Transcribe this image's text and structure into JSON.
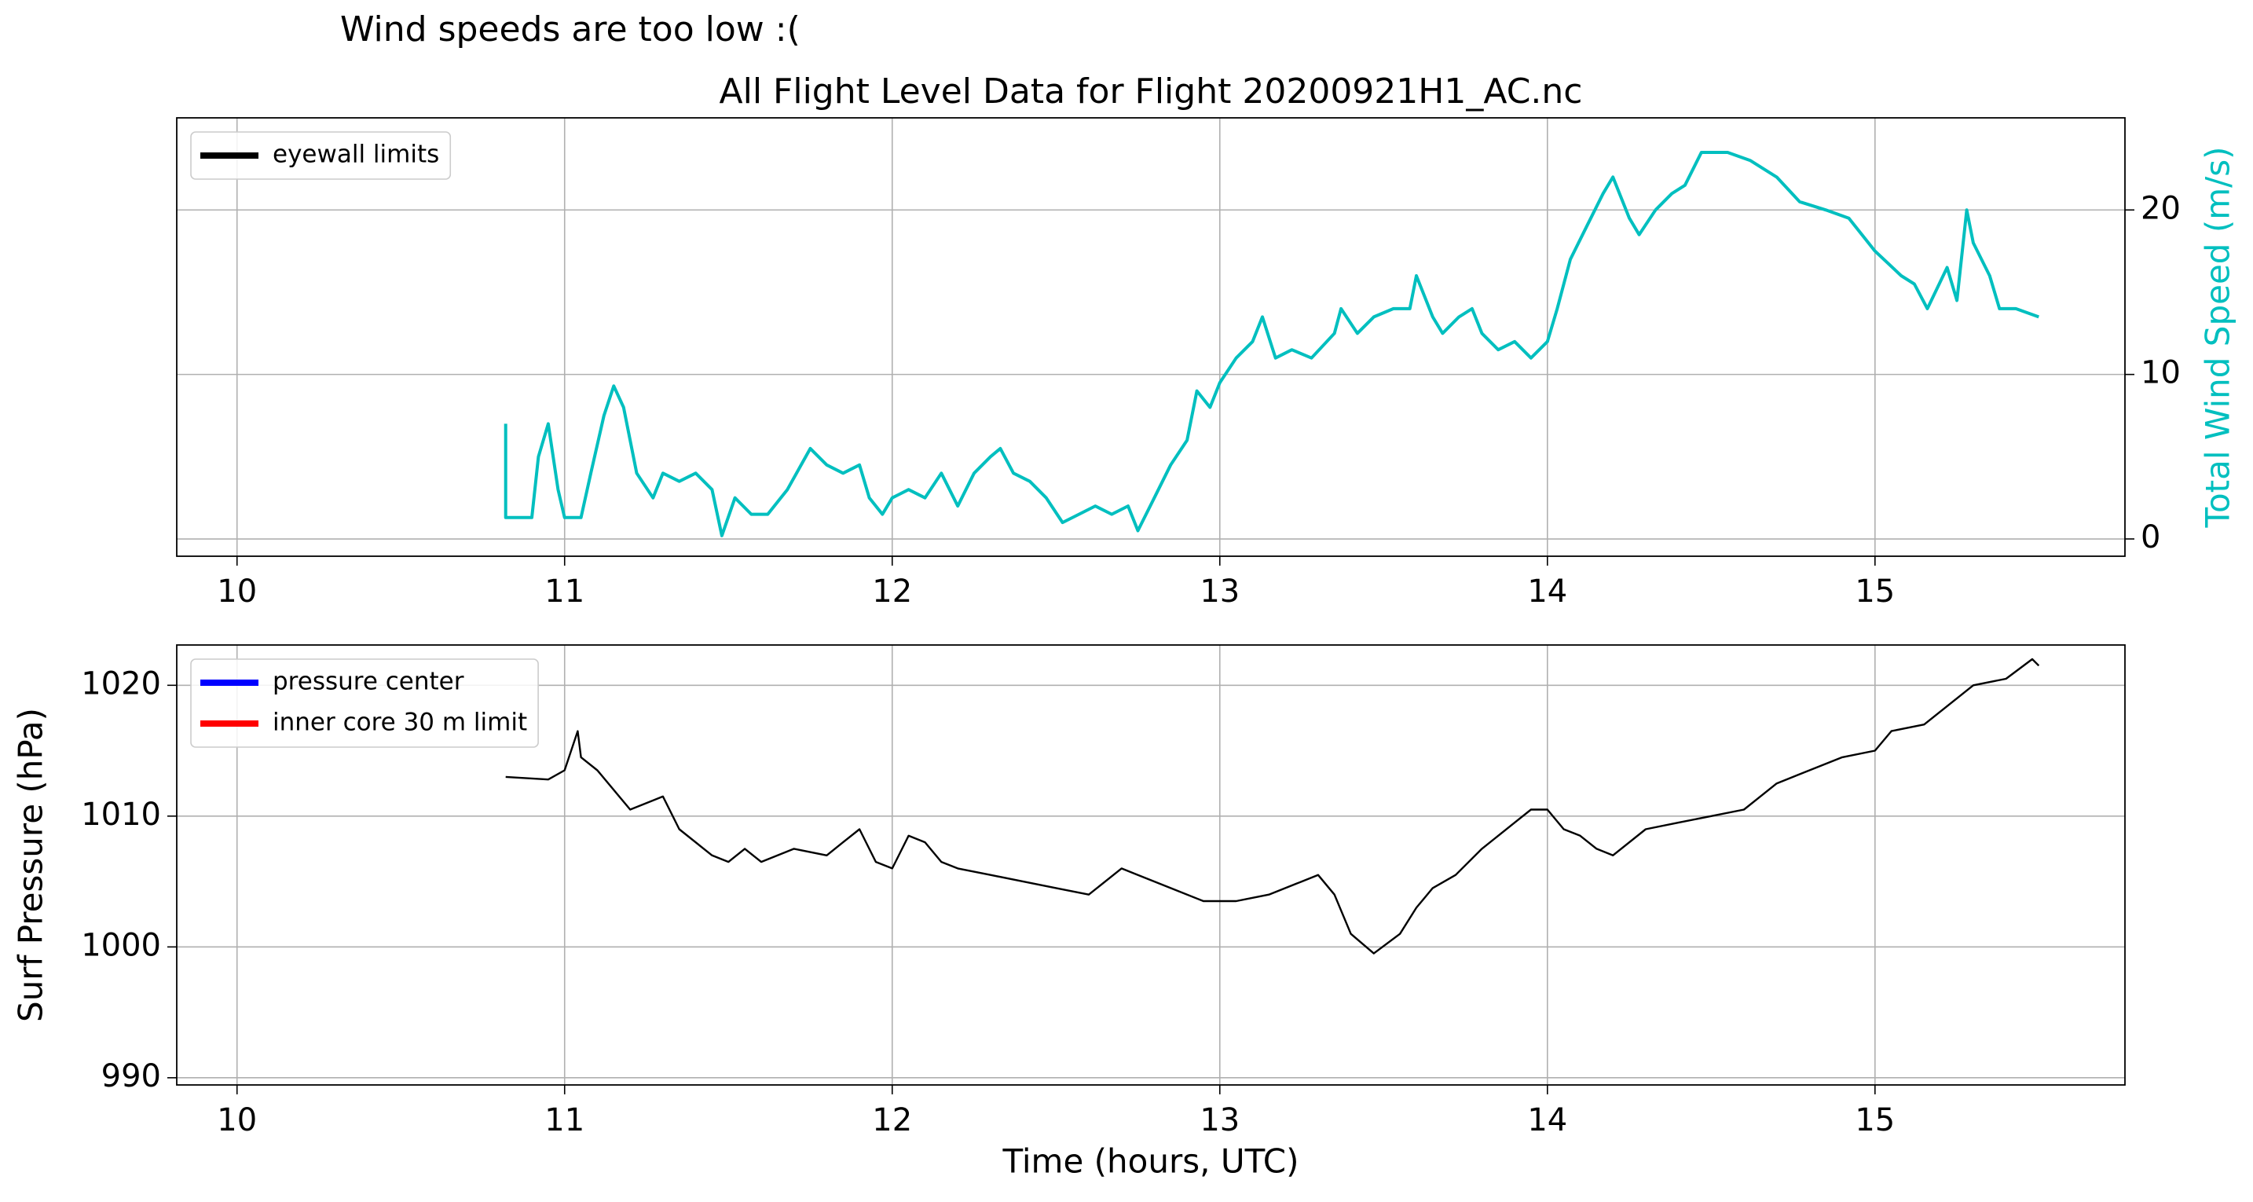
{
  "chart_data": [
    {
      "type": "line",
      "annotation": "Wind speeds are too low :(",
      "title": "All Flight Level Data for Flight 20200921H1_AC.nc",
      "y2label": "Total Wind Speed (m/s)",
      "xlim": [
        9.816,
        15.763
      ],
      "xticks": [
        10,
        11,
        12,
        13,
        14,
        15
      ],
      "y2lim": [
        -1.05,
        25.6
      ],
      "y2ticks": [
        0,
        10,
        20
      ],
      "grid": true,
      "legend_loc": "upper left",
      "legend": [
        {
          "name": "eyewall limits",
          "color": "#000000"
        }
      ],
      "series": [
        {
          "color": "#00bfbf",
          "axis": "y2",
          "x": [
            10.82,
            10.82,
            10.9,
            10.92,
            10.95,
            10.98,
            11.0,
            11.05,
            11.08,
            11.12,
            11.15,
            11.18,
            11.22,
            11.27,
            11.3,
            11.35,
            11.4,
            11.45,
            11.48,
            11.52,
            11.57,
            11.62,
            11.68,
            11.75,
            11.8,
            11.85,
            11.9,
            11.93,
            11.97,
            12.0,
            12.05,
            12.1,
            12.15,
            12.2,
            12.25,
            12.3,
            12.33,
            12.37,
            12.42,
            12.47,
            12.52,
            12.57,
            12.62,
            12.67,
            12.72,
            12.75,
            12.8,
            12.85,
            12.9,
            12.93,
            12.97,
            13.0,
            13.05,
            13.1,
            13.13,
            13.17,
            13.22,
            13.28,
            13.35,
            13.37,
            13.42,
            13.47,
            13.53,
            13.58,
            13.6,
            13.65,
            13.68,
            13.73,
            13.77,
            13.8,
            13.85,
            13.9,
            13.95,
            14.0,
            14.03,
            14.07,
            14.12,
            14.17,
            14.2,
            14.25,
            14.28,
            14.33,
            14.38,
            14.42,
            14.47,
            14.55,
            14.62,
            14.7,
            14.77,
            14.85,
            14.92,
            15.0,
            15.08,
            15.12,
            15.16,
            15.22,
            15.25,
            15.28,
            15.3,
            15.35,
            15.38,
            15.43,
            15.5
          ],
          "values": [
            7.0,
            1.3,
            1.3,
            5.0,
            7.0,
            3.0,
            1.3,
            1.3,
            4.0,
            7.5,
            9.3,
            8.0,
            4.0,
            2.5,
            4.0,
            3.5,
            4.0,
            3.0,
            0.2,
            2.5,
            1.5,
            1.5,
            3.0,
            5.5,
            4.5,
            4.0,
            4.5,
            2.5,
            1.5,
            2.5,
            3.0,
            2.5,
            4.0,
            2.0,
            4.0,
            5.0,
            5.5,
            4.0,
            3.5,
            2.5,
            1.0,
            1.5,
            2.0,
            1.5,
            2.0,
            0.5,
            2.5,
            4.5,
            6.0,
            9.0,
            8.0,
            9.5,
            11.0,
            12.0,
            13.5,
            11.0,
            11.5,
            11.0,
            12.5,
            14.0,
            12.5,
            13.5,
            14.0,
            14.0,
            16.0,
            13.5,
            12.5,
            13.5,
            14.0,
            12.5,
            11.5,
            12.0,
            11.0,
            12.0,
            14.0,
            17.0,
            19.0,
            21.0,
            22.0,
            19.5,
            18.5,
            20.0,
            21.0,
            21.5,
            23.5,
            23.5,
            23.0,
            22.0,
            20.5,
            20.0,
            19.5,
            17.5,
            16.0,
            15.5,
            14.0,
            16.5,
            14.5,
            20.0,
            18.0,
            16.0,
            14.0,
            14.0,
            13.5
          ]
        }
      ]
    },
    {
      "type": "line",
      "ylabel": "Surf Pressure (hPa)",
      "xlabel": "Time (hours, UTC)",
      "xlim": [
        9.816,
        15.763
      ],
      "xticks": [
        10,
        11,
        12,
        13,
        14,
        15
      ],
      "ylim": [
        989.45,
        1023.08
      ],
      "yticks": [
        990,
        1000,
        1010,
        1020
      ],
      "grid": true,
      "legend_loc": "upper left",
      "legend": [
        {
          "name": "pressure center",
          "color": "#0000ff"
        },
        {
          "name": "inner core 30 m limit",
          "color": "#ff0000"
        }
      ],
      "series": [
        {
          "color": "#000000",
          "x": [
            10.82,
            10.95,
            11.0,
            11.04,
            11.05,
            11.1,
            11.2,
            11.3,
            11.35,
            11.45,
            11.5,
            11.55,
            11.6,
            11.7,
            11.8,
            11.85,
            11.9,
            11.95,
            12.0,
            12.05,
            12.1,
            12.15,
            12.2,
            12.3,
            12.4,
            12.5,
            12.6,
            12.7,
            12.75,
            12.85,
            12.95,
            13.05,
            13.15,
            13.25,
            13.3,
            13.35,
            13.4,
            13.47,
            13.55,
            13.6,
            13.65,
            13.72,
            13.8,
            13.9,
            13.95,
            14.0,
            14.05,
            14.1,
            14.15,
            14.2,
            14.3,
            14.4,
            14.5,
            14.6,
            14.7,
            14.8,
            14.9,
            15.0,
            15.05,
            15.15,
            15.25,
            15.3,
            15.4,
            15.48,
            15.5
          ],
          "values": [
            1013,
            1012.8,
            1013.5,
            1016.5,
            1014.5,
            1013.5,
            1010.5,
            1011.5,
            1009,
            1007,
            1006.5,
            1007.5,
            1006.5,
            1007.5,
            1007,
            1008,
            1009,
            1006.5,
            1006,
            1008.5,
            1008,
            1006.5,
            1006,
            1005.5,
            1005,
            1004.5,
            1004,
            1006,
            1005.5,
            1004.5,
            1003.5,
            1003.5,
            1004,
            1005,
            1005.5,
            1004,
            1001,
            999.5,
            1001,
            1003,
            1004.5,
            1005.5,
            1007.5,
            1009.5,
            1010.5,
            1010.5,
            1009,
            1008.5,
            1007.5,
            1007,
            1009,
            1009.5,
            1010,
            1010.5,
            1012.5,
            1013.5,
            1014.5,
            1015,
            1016.5,
            1017,
            1019,
            1020,
            1020.5,
            1022,
            1021.5
          ]
        }
      ]
    }
  ]
}
